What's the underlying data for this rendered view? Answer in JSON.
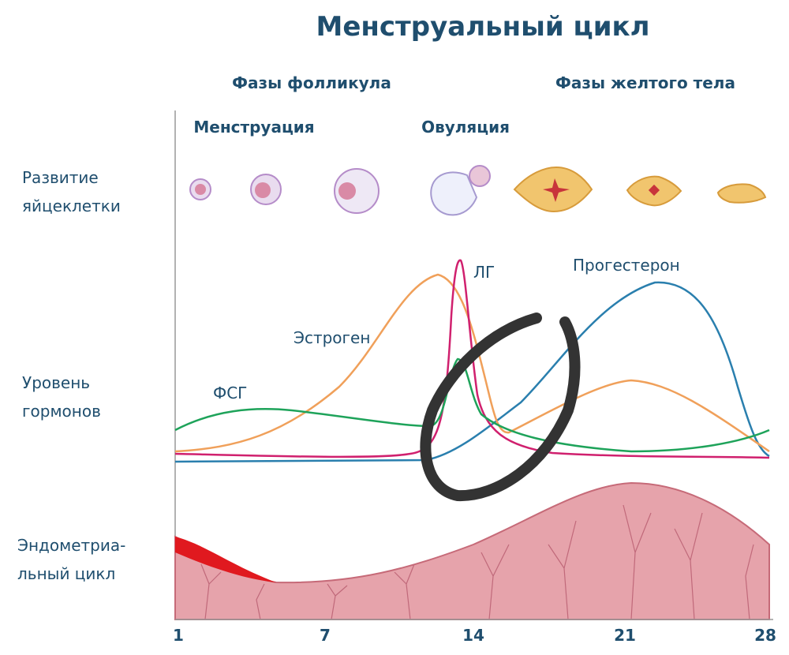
{
  "title": "Менструальный цикл",
  "phases": [
    "Фазы фолликула",
    "Фазы желтого тела"
  ],
  "events": [
    "Менструация",
    "Овуляция"
  ],
  "rows": [
    [
      "Развитие",
      "яйцеклетки"
    ],
    [
      "Уровень",
      "гормонов"
    ],
    [
      "Эндометриа-",
      "льный цикл"
    ]
  ],
  "hormones": [
    "ФСГ",
    "Эстроген",
    "ЛГ",
    "Прогестерон"
  ],
  "days": [
    "1",
    "7",
    "14",
    "21",
    "28"
  ]
}
